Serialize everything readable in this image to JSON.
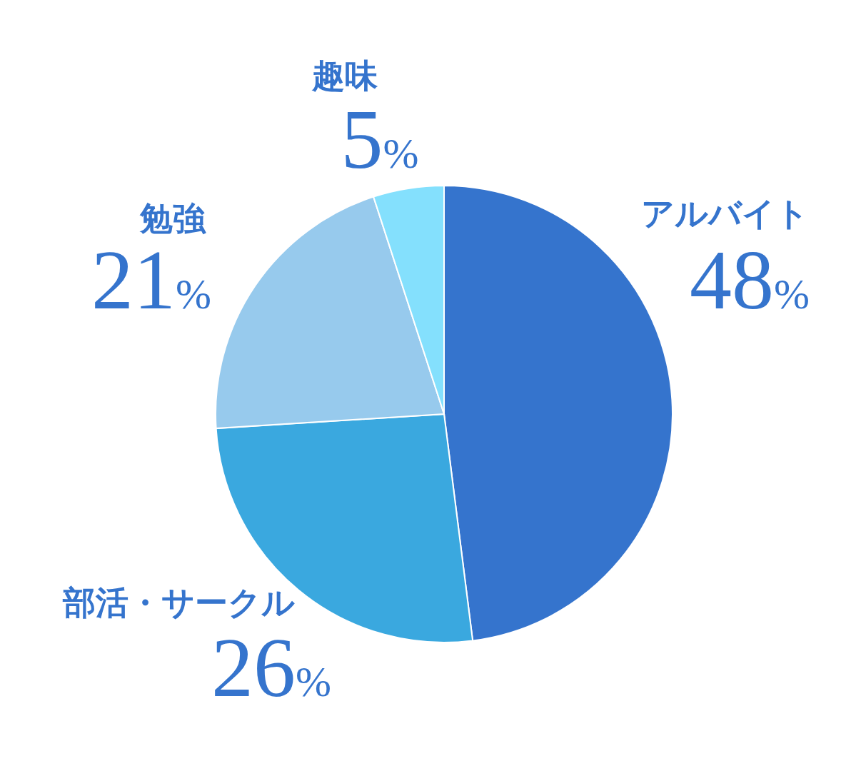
{
  "chart_data": {
    "type": "pie",
    "categories": [
      "アルバイト",
      "部活・サークル",
      "勉強",
      "趣味"
    ],
    "values": [
      48,
      26,
      21,
      5
    ],
    "colors": [
      "#3574cd",
      "#3aa8df",
      "#97caed",
      "#84e0fd"
    ],
    "value_labels": [
      "48%",
      "26%",
      "21%",
      "5%"
    ]
  }
}
